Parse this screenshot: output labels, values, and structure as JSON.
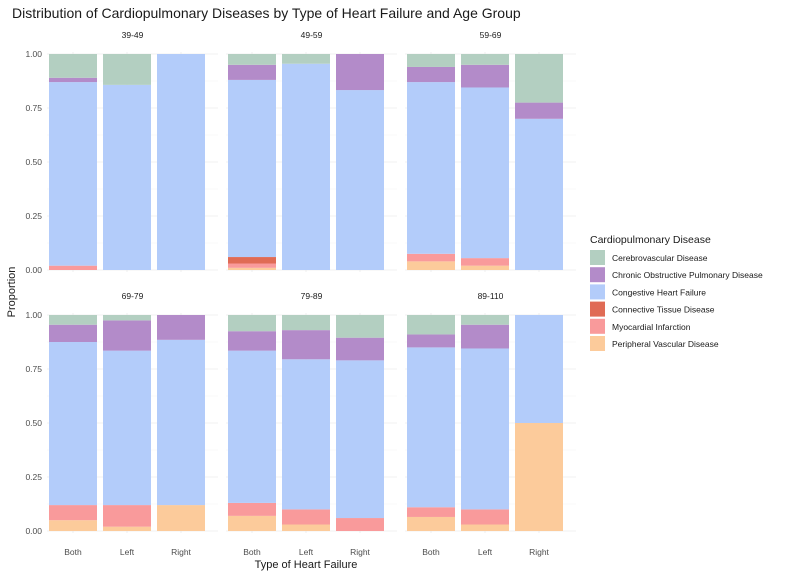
{
  "chart_data": {
    "type": "bar",
    "stacked": true,
    "title": "Distribution of Cardiopulmonary Diseases by Type of Heart Failure and Age Group",
    "xlabel": "Type of Heart Failure",
    "ylabel": "Proportion",
    "ylim": [
      0,
      1
    ],
    "yticks": [
      "0.00",
      "0.25",
      "0.50",
      "0.75",
      "1.00"
    ],
    "grid": true,
    "legend_position": "right",
    "legend_title": "Cardiopulmonary Disease",
    "categories": [
      "Both",
      "Left",
      "Right"
    ],
    "series_order_bottom_to_top": [
      "Peripheral Vascular Disease",
      "Myocardial Infarction",
      "Connective Tissue Disease",
      "Congestive Heart Failure",
      "Chronic Obstructive Pulmonary Disease",
      "Cerebrovascular Disease"
    ],
    "legend": [
      {
        "name": "Cerebrovascular Disease",
        "color": "#b3cfc1"
      },
      {
        "name": "Chronic Obstructive Pulmonary Disease",
        "color": "#b38bc9"
      },
      {
        "name": "Congestive Heart Failure",
        "color": "#b3ccfa"
      },
      {
        "name": "Connective Tissue Disease",
        "color": "#e06b55"
      },
      {
        "name": "Myocardial Infarction",
        "color": "#f99a9b"
      },
      {
        "name": "Peripheral Vascular Disease",
        "color": "#fccb9b"
      }
    ],
    "facets": [
      {
        "label": "39-49",
        "bars": {
          "Both": {
            "Peripheral Vascular Disease": 0,
            "Myocardial Infarction": 0.02,
            "Connective Tissue Disease": 0,
            "Congestive Heart Failure": 0.85,
            "Chronic Obstructive Pulmonary Disease": 0.02,
            "Cerebrovascular Disease": 0.11
          },
          "Left": {
            "Peripheral Vascular Disease": 0,
            "Myocardial Infarction": 0,
            "Connective Tissue Disease": 0,
            "Congestive Heart Failure": 0.857,
            "Chronic Obstructive Pulmonary Disease": 0,
            "Cerebrovascular Disease": 0.143
          },
          "Right": {
            "Peripheral Vascular Disease": 0,
            "Myocardial Infarction": 0,
            "Connective Tissue Disease": 0,
            "Congestive Heart Failure": 1.0,
            "Chronic Obstructive Pulmonary Disease": 0,
            "Cerebrovascular Disease": 0
          }
        }
      },
      {
        "label": "49-59",
        "bars": {
          "Both": {
            "Peripheral Vascular Disease": 0.01,
            "Myocardial Infarction": 0.02,
            "Connective Tissue Disease": 0.03,
            "Congestive Heart Failure": 0.82,
            "Chronic Obstructive Pulmonary Disease": 0.07,
            "Cerebrovascular Disease": 0.05
          },
          "Left": {
            "Peripheral Vascular Disease": 0,
            "Myocardial Infarction": 0,
            "Connective Tissue Disease": 0,
            "Congestive Heart Failure": 0.955,
            "Chronic Obstructive Pulmonary Disease": 0,
            "Cerebrovascular Disease": 0.045
          },
          "Right": {
            "Peripheral Vascular Disease": 0,
            "Myocardial Infarction": 0,
            "Connective Tissue Disease": 0,
            "Congestive Heart Failure": 0.833,
            "Chronic Obstructive Pulmonary Disease": 0.167,
            "Cerebrovascular Disease": 0
          }
        }
      },
      {
        "label": "59-69",
        "bars": {
          "Both": {
            "Peripheral Vascular Disease": 0.04,
            "Myocardial Infarction": 0.035,
            "Connective Tissue Disease": 0,
            "Congestive Heart Failure": 0.795,
            "Chronic Obstructive Pulmonary Disease": 0.07,
            "Cerebrovascular Disease": 0.06
          },
          "Left": {
            "Peripheral Vascular Disease": 0.02,
            "Myocardial Infarction": 0.035,
            "Connective Tissue Disease": 0,
            "Congestive Heart Failure": 0.79,
            "Chronic Obstructive Pulmonary Disease": 0.105,
            "Cerebrovascular Disease": 0.05
          },
          "Right": {
            "Peripheral Vascular Disease": 0,
            "Myocardial Infarction": 0,
            "Connective Tissue Disease": 0,
            "Congestive Heart Failure": 0.7,
            "Chronic Obstructive Pulmonary Disease": 0.075,
            "Cerebrovascular Disease": 0.225
          }
        }
      },
      {
        "label": "69-79",
        "bars": {
          "Both": {
            "Peripheral Vascular Disease": 0.05,
            "Myocardial Infarction": 0.07,
            "Connective Tissue Disease": 0,
            "Congestive Heart Failure": 0.755,
            "Chronic Obstructive Pulmonary Disease": 0.08,
            "Cerebrovascular Disease": 0.045
          },
          "Left": {
            "Peripheral Vascular Disease": 0.02,
            "Myocardial Infarction": 0.1,
            "Connective Tissue Disease": 0,
            "Congestive Heart Failure": 0.715,
            "Chronic Obstructive Pulmonary Disease": 0.14,
            "Cerebrovascular Disease": 0.025
          },
          "Right": {
            "Peripheral Vascular Disease": 0.12,
            "Myocardial Infarction": 0,
            "Connective Tissue Disease": 0,
            "Congestive Heart Failure": 0.765,
            "Chronic Obstructive Pulmonary Disease": 0.115,
            "Cerebrovascular Disease": 0
          }
        }
      },
      {
        "label": "79-89",
        "bars": {
          "Both": {
            "Peripheral Vascular Disease": 0.07,
            "Myocardial Infarction": 0.06,
            "Connective Tissue Disease": 0,
            "Congestive Heart Failure": 0.705,
            "Chronic Obstructive Pulmonary Disease": 0.09,
            "Cerebrovascular Disease": 0.075
          },
          "Left": {
            "Peripheral Vascular Disease": 0.03,
            "Myocardial Infarction": 0.07,
            "Connective Tissue Disease": 0,
            "Congestive Heart Failure": 0.695,
            "Chronic Obstructive Pulmonary Disease": 0.135,
            "Cerebrovascular Disease": 0.07
          },
          "Right": {
            "Peripheral Vascular Disease": 0,
            "Myocardial Infarction": 0.06,
            "Connective Tissue Disease": 0,
            "Congestive Heart Failure": 0.73,
            "Chronic Obstructive Pulmonary Disease": 0.105,
            "Cerebrovascular Disease": 0.105
          }
        }
      },
      {
        "label": "89-110",
        "bars": {
          "Both": {
            "Peripheral Vascular Disease": 0.065,
            "Myocardial Infarction": 0.045,
            "Connective Tissue Disease": 0,
            "Congestive Heart Failure": 0.74,
            "Chronic Obstructive Pulmonary Disease": 0.06,
            "Cerebrovascular Disease": 0.09
          },
          "Left": {
            "Peripheral Vascular Disease": 0.03,
            "Myocardial Infarction": 0.07,
            "Connective Tissue Disease": 0,
            "Congestive Heart Failure": 0.745,
            "Chronic Obstructive Pulmonary Disease": 0.11,
            "Cerebrovascular Disease": 0.045
          },
          "Right": {
            "Peripheral Vascular Disease": 0.5,
            "Myocardial Infarction": 0,
            "Connective Tissue Disease": 0,
            "Congestive Heart Failure": 0.5,
            "Chronic Obstructive Pulmonary Disease": 0,
            "Cerebrovascular Disease": 0
          }
        }
      }
    ]
  }
}
